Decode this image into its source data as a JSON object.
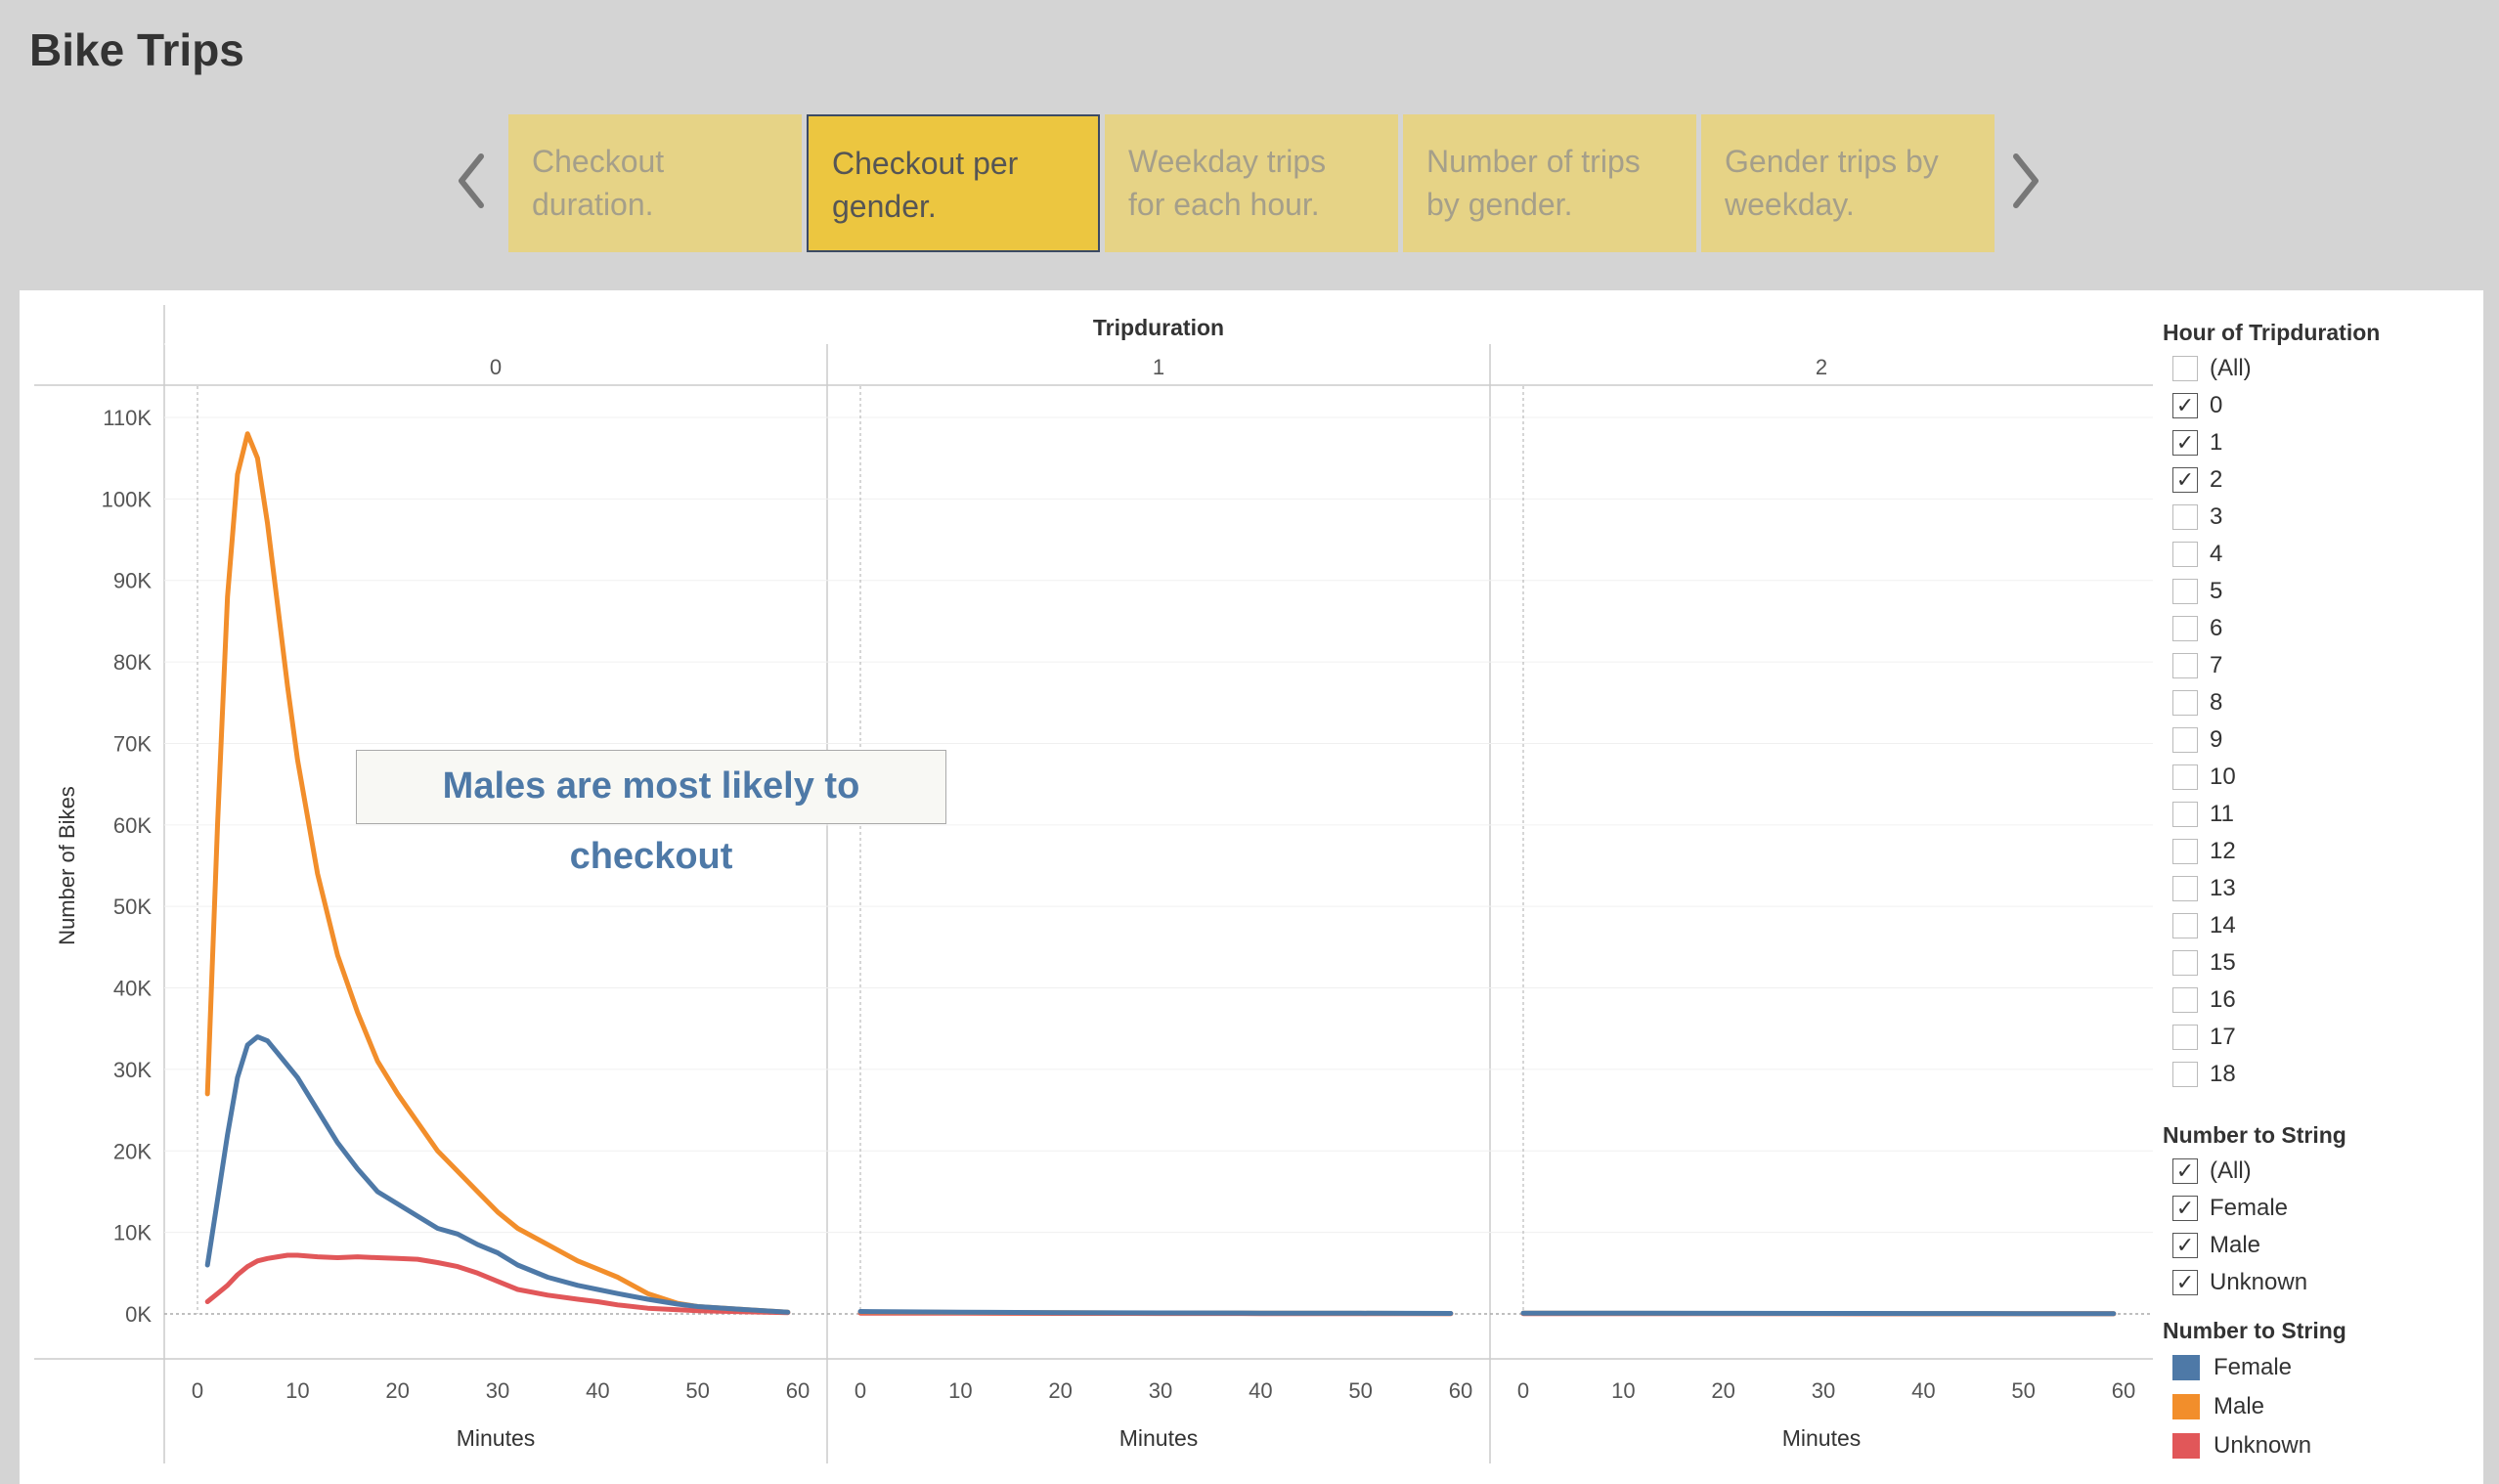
{
  "page": {
    "title": "Bike Trips"
  },
  "nav": {
    "tabs": [
      {
        "label_line1": "Checkout",
        "label_line2": "duration.",
        "active": false
      },
      {
        "label_line1": "Checkout per",
        "label_line2": "gender.",
        "active": true
      },
      {
        "label_line1": "Weekday trips",
        "label_line2": "for each hour.",
        "active": false
      },
      {
        "label_line1": "Number of trips",
        "label_line2": "by gender.",
        "active": false
      },
      {
        "label_line1": "Gender trips by",
        "label_line2": "weekday.",
        "active": false
      }
    ]
  },
  "annotation": "Males are most likely to checkout",
  "filters": {
    "hour": {
      "title": "Hour of Tripduration",
      "items": [
        {
          "label": "(All)",
          "checked": false
        },
        {
          "label": "0",
          "checked": true
        },
        {
          "label": "1",
          "checked": true
        },
        {
          "label": "2",
          "checked": true
        },
        {
          "label": "3",
          "checked": false
        },
        {
          "label": "4",
          "checked": false
        },
        {
          "label": "5",
          "checked": false
        },
        {
          "label": "6",
          "checked": false
        },
        {
          "label": "7",
          "checked": false
        },
        {
          "label": "8",
          "checked": false
        },
        {
          "label": "9",
          "checked": false
        },
        {
          "label": "10",
          "checked": false
        },
        {
          "label": "11",
          "checked": false
        },
        {
          "label": "12",
          "checked": false
        },
        {
          "label": "13",
          "checked": false
        },
        {
          "label": "14",
          "checked": false
        },
        {
          "label": "15",
          "checked": false
        },
        {
          "label": "16",
          "checked": false
        },
        {
          "label": "17",
          "checked": false
        },
        {
          "label": "18",
          "checked": false
        }
      ]
    },
    "gender": {
      "title": "Number to String",
      "items": [
        {
          "label": "(All)",
          "checked": true
        },
        {
          "label": "Female",
          "checked": true
        },
        {
          "label": "Male",
          "checked": true
        },
        {
          "label": "Unknown",
          "checked": true
        }
      ]
    }
  },
  "legend": {
    "title": "Number to String",
    "items": [
      {
        "label": "Female",
        "color": "#4e79a7"
      },
      {
        "label": "Male",
        "color": "#f28e2b"
      },
      {
        "label": "Unknown",
        "color": "#e15759"
      }
    ]
  },
  "chart_data": {
    "type": "line",
    "title": "",
    "facet_label": "Tripduration",
    "facets": [
      "0",
      "1",
      "2"
    ],
    "xlabel": "Minutes",
    "ylabel": "Number of Bikes",
    "xlim": [
      0,
      60
    ],
    "ylim": [
      0,
      110000
    ],
    "x_ticks": [
      0,
      10,
      20,
      30,
      40,
      50,
      60
    ],
    "y_ticks": [
      0,
      10000,
      20000,
      30000,
      40000,
      50000,
      60000,
      70000,
      80000,
      90000,
      100000,
      110000
    ],
    "y_tick_labels": [
      "0K",
      "10K",
      "20K",
      "30K",
      "40K",
      "50K",
      "60K",
      "70K",
      "80K",
      "90K",
      "100K",
      "110K"
    ],
    "series": [
      {
        "name": "Female",
        "color": "#4e79a7",
        "panels": [
          {
            "x": [
              1,
              2,
              3,
              4,
              5,
              6,
              7,
              8,
              9,
              10,
              12,
              14,
              16,
              18,
              20,
              22,
              24,
              26,
              28,
              30,
              32,
              35,
              38,
              40,
              42,
              45,
              48,
              50,
              55,
              59
            ],
            "y": [
              6000,
              14000,
              22000,
              29000,
              33000,
              34000,
              33500,
              32000,
              30500,
              29000,
              25000,
              21000,
              17800,
              15000,
              13500,
              12000,
              10500,
              9800,
              8500,
              7500,
              6000,
              4500,
              3500,
              3000,
              2500,
              1800,
              1200,
              900,
              500,
              200
            ]
          },
          {
            "x": [
              0,
              10,
              20,
              30,
              40,
              50,
              59
            ],
            "y": [
              300,
              200,
              150,
              120,
              100,
              80,
              60
            ]
          },
          {
            "x": [
              0,
              10,
              20,
              30,
              40,
              50,
              59
            ],
            "y": [
              100,
              80,
              70,
              60,
              50,
              40,
              30
            ]
          }
        ]
      },
      {
        "name": "Male",
        "color": "#f28e2b",
        "panels": [
          {
            "x": [
              1,
              2,
              3,
              4,
              5,
              6,
              7,
              8,
              9,
              10,
              12,
              14,
              16,
              18,
              20,
              22,
              24,
              26,
              28,
              30,
              32,
              35,
              38,
              40,
              42,
              45,
              48,
              50,
              55,
              59
            ],
            "y": [
              27000,
              60000,
              88000,
              103000,
              108000,
              105000,
              97000,
              87000,
              77000,
              68000,
              54000,
              44000,
              37000,
              31000,
              27000,
              23500,
              20000,
              17500,
              15000,
              12500,
              10500,
              8500,
              6500,
              5500,
              4500,
              2500,
              1300,
              900,
              500,
              200
            ]
          },
          {
            "x": [
              0,
              10,
              20,
              30,
              40,
              50,
              59
            ],
            "y": [
              250,
              180,
              140,
              110,
              90,
              70,
              50
            ]
          },
          {
            "x": [
              0,
              10,
              20,
              30,
              40,
              50,
              59
            ],
            "y": [
              80,
              70,
              60,
              50,
              40,
              30,
              20
            ]
          }
        ]
      },
      {
        "name": "Unknown",
        "color": "#e15759",
        "panels": [
          {
            "x": [
              1,
              2,
              3,
              4,
              5,
              6,
              7,
              8,
              9,
              10,
              12,
              14,
              16,
              18,
              20,
              22,
              24,
              26,
              28,
              30,
              32,
              35,
              38,
              40,
              42,
              45,
              48,
              50,
              55,
              59
            ],
            "y": [
              1500,
              2500,
              3500,
              4800,
              5800,
              6500,
              6800,
              7000,
              7200,
              7200,
              7000,
              6900,
              7000,
              6900,
              6800,
              6700,
              6300,
              5800,
              5000,
              4000,
              3000,
              2300,
              1800,
              1500,
              1100,
              700,
              500,
              400,
              250,
              150
            ]
          },
          {
            "x": [
              0,
              10,
              20,
              30,
              40,
              50,
              59
            ],
            "y": [
              100,
              80,
              60,
              50,
              40,
              30,
              20
            ]
          },
          {
            "x": [
              0,
              10,
              20,
              30,
              40,
              50,
              59
            ],
            "y": [
              40,
              30,
              25,
              20,
              15,
              10,
              10
            ]
          }
        ]
      }
    ],
    "draw_order": [
      "Unknown",
      "Male",
      "Female"
    ],
    "grid": true,
    "legend_position": "right"
  }
}
